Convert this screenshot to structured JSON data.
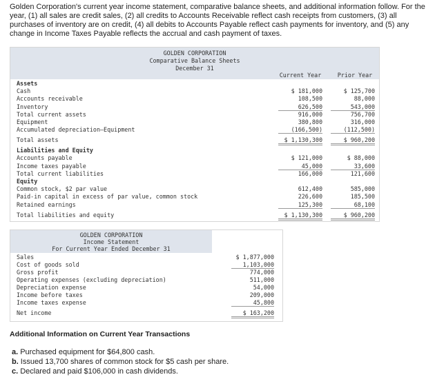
{
  "intro": "Golden Corporation's current year income statement, comparative balance sheets, and additional information follow. For the year, (1) all sales are credit sales, (2) all credits to Accounts Receivable reflect cash receipts from customers, (3) all purchases of inventory are on credit, (4) all debits to Accounts Payable reflect cash payments for inventory, and (5) any change in Income Taxes Payable reflects the accrual and cash payment of taxes.",
  "balance_sheet": {
    "header": [
      "GOLDEN CORPORATION",
      "Comparative Balance Sheets",
      "December 31"
    ],
    "columns": [
      "Current Year",
      "Prior Year"
    ],
    "rows": [
      {
        "label": "Assets"
      },
      {
        "label": "Cash",
        "current": "$ 181,000",
        "prior": "$ 125,700"
      },
      {
        "label": "Accounts receivable",
        "current": "108,500",
        "prior": "88,000"
      },
      {
        "label": "Inventory",
        "current": "626,500",
        "prior": "543,000"
      },
      {
        "label": "Total current assets",
        "current": "916,000",
        "prior": "756,700"
      },
      {
        "label": "Equipment",
        "current": "380,800",
        "prior": "316,000"
      },
      {
        "label": "Accumulated depreciation—Equipment",
        "current": "(166,500)",
        "prior": "(112,500)"
      },
      {
        "label": "Total assets",
        "current": "$ 1,130,300",
        "prior": "$ 960,200"
      },
      {
        "label": "Liabilities and Equity"
      },
      {
        "label": "Accounts payable",
        "current": "$ 121,000",
        "prior": "$ 88,000"
      },
      {
        "label": "Income taxes payable",
        "current": "45,000",
        "prior": "33,600"
      },
      {
        "label": "Total current liabilities",
        "current": "166,000",
        "prior": "121,600"
      },
      {
        "label": "Equity"
      },
      {
        "label": "Common stock, $2 par value",
        "current": "612,400",
        "prior": "585,000"
      },
      {
        "label": "Paid-in capital in excess of par value, common stock",
        "current": "226,600",
        "prior": "185,500"
      },
      {
        "label": "Retained earnings",
        "current": "125,300",
        "prior": "68,100"
      },
      {
        "label": "Total liabilities and equity",
        "current": "$ 1,130,300",
        "prior": "$ 960,200"
      }
    ]
  },
  "income_statement": {
    "header": [
      "GOLDEN CORPORATION",
      "Income Statement",
      "For Current Year Ended December 31"
    ],
    "rows": [
      {
        "label": "Sales",
        "amount": "$ 1,877,000"
      },
      {
        "label": "Cost of goods sold",
        "amount": "1,103,000"
      },
      {
        "label": "Gross profit",
        "amount": "774,000"
      },
      {
        "label": "Operating expenses (excluding depreciation)",
        "amount": "511,000"
      },
      {
        "label": "Depreciation expense",
        "amount": "54,000"
      },
      {
        "label": "Income before taxes",
        "amount": "209,000"
      },
      {
        "label": "Income taxes expense",
        "amount": "45,800"
      },
      {
        "label": "Net income",
        "amount": "$ 163,200"
      }
    ]
  },
  "additional": {
    "title": "Additional Information on Current Year Transactions",
    "items": [
      {
        "marker": "a.",
        "text": "Purchased equipment for $64,800 cash."
      },
      {
        "marker": "b.",
        "text": "Issued 13,700 shares of common stock for $5 cash per share."
      },
      {
        "marker": "c.",
        "text": "Declared and paid $106,000 in cash dividends."
      }
    ]
  }
}
